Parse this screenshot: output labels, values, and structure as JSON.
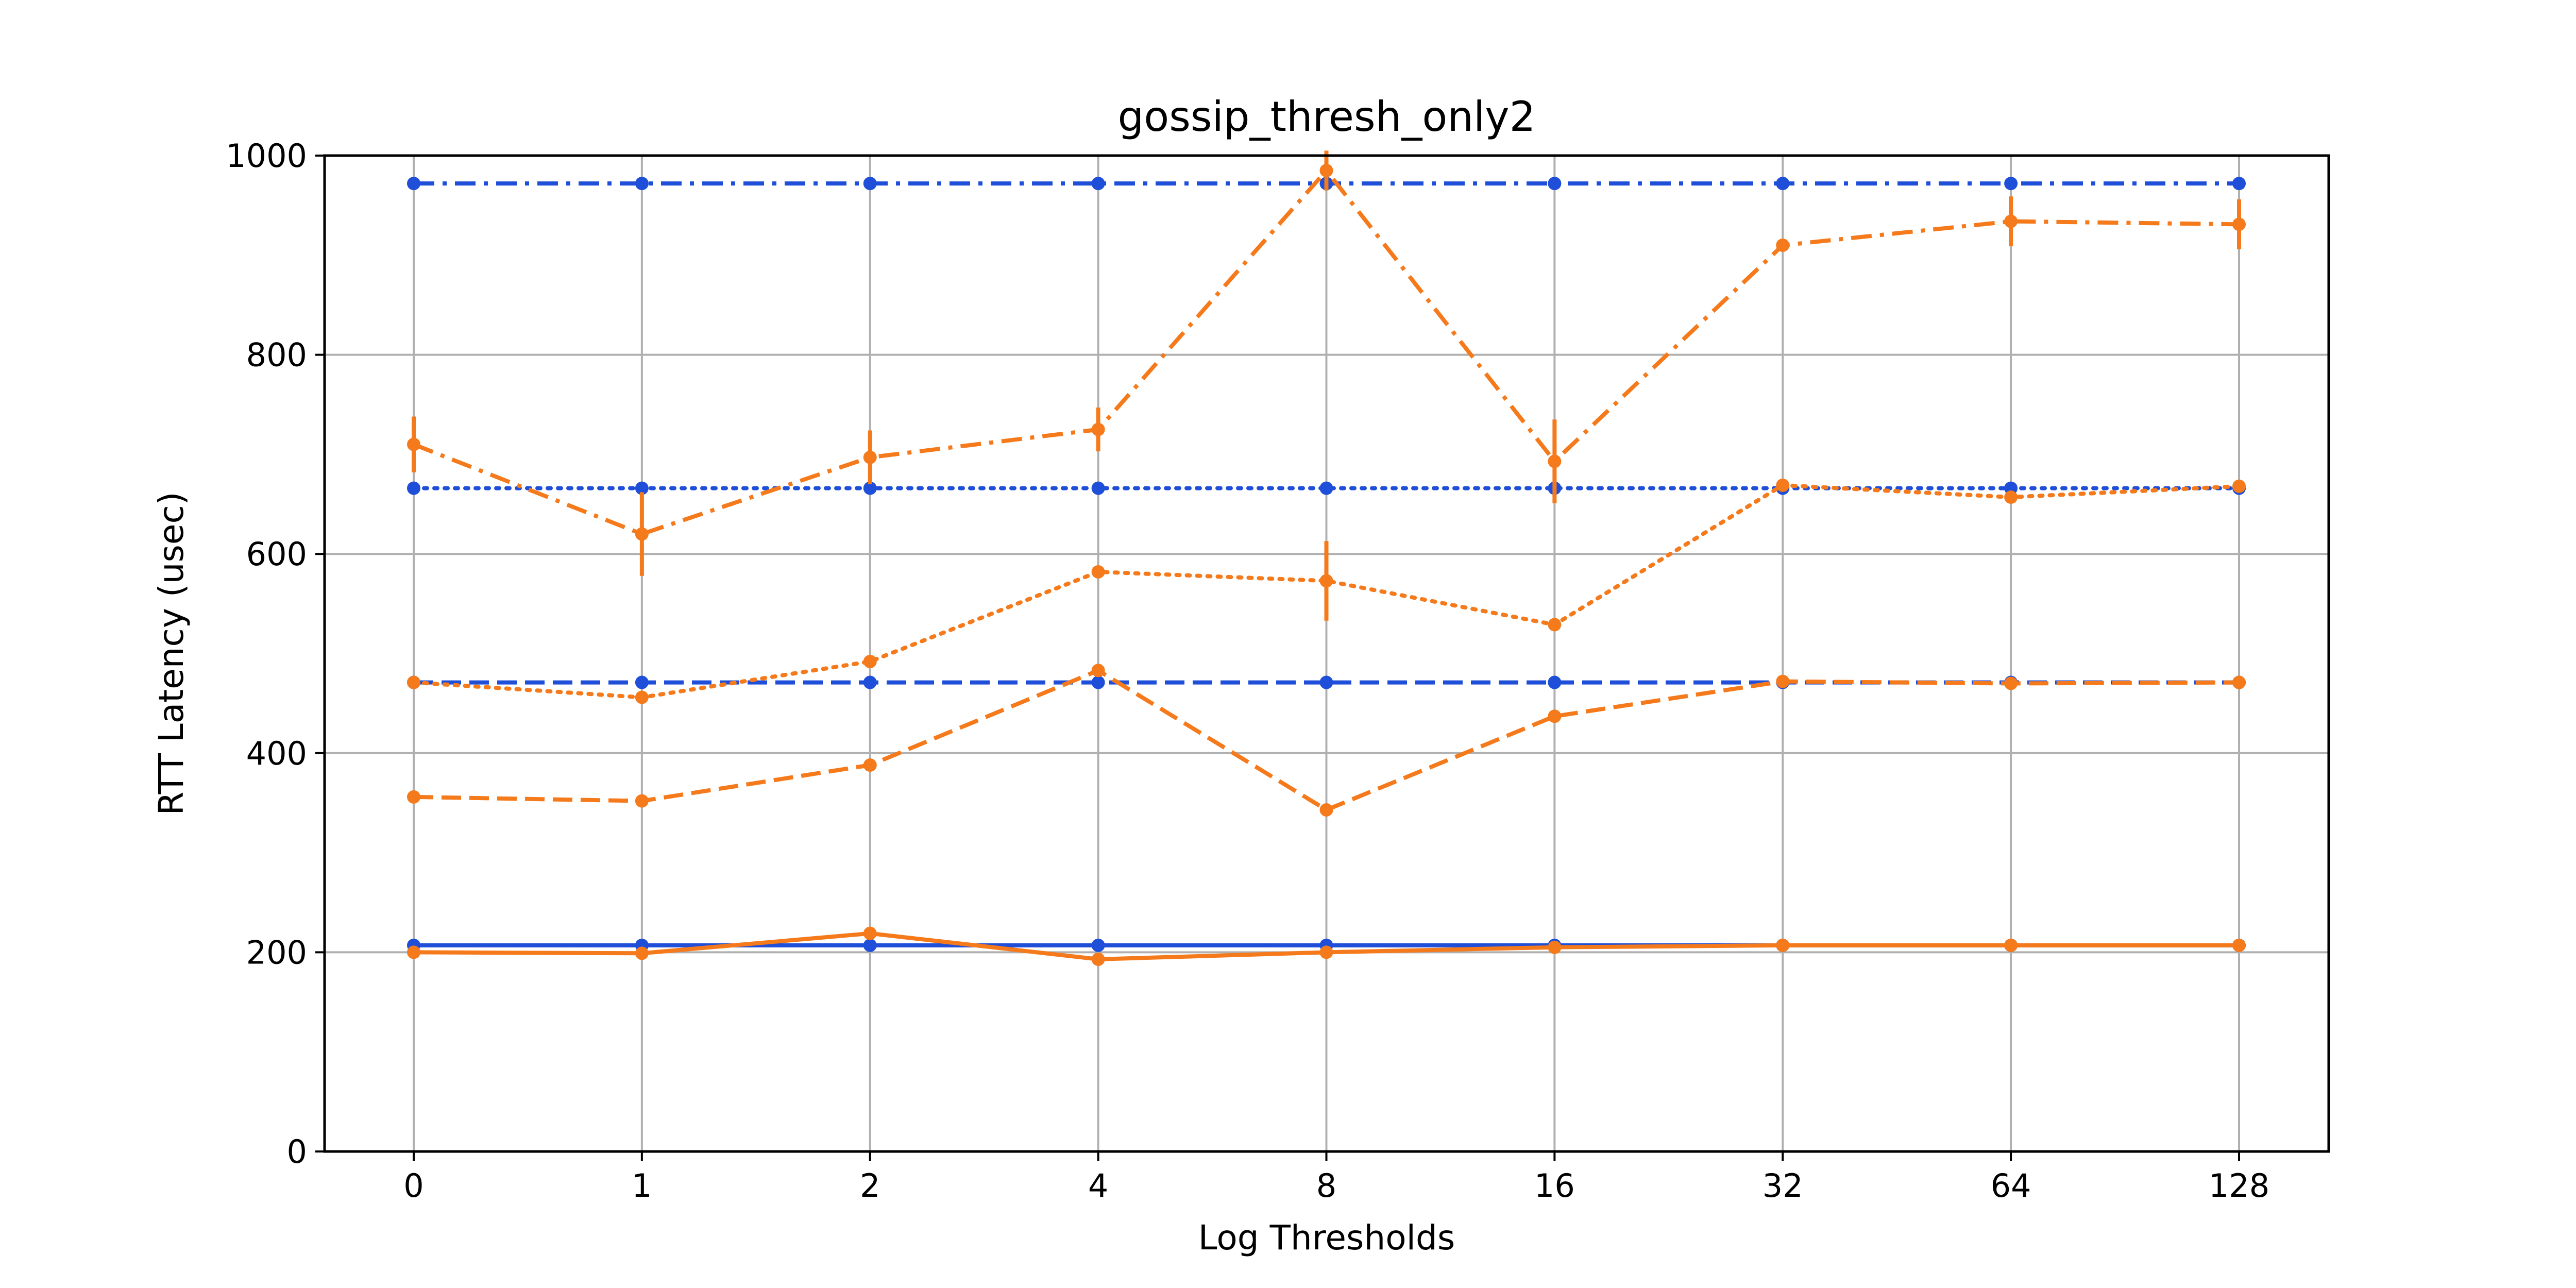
{
  "chart_data": {
    "type": "line",
    "title": "gossip_thresh_only2",
    "xlabel": "Log Thresholds",
    "ylabel": "RTT Latency (usec)",
    "categories": [
      "0",
      "1",
      "2",
      "4",
      "8",
      "16",
      "32",
      "64",
      "128"
    ],
    "ylim": [
      0,
      1000
    ],
    "yticks": [
      0,
      200,
      400,
      600,
      800,
      1000
    ],
    "grid": true,
    "series": [
      {
        "color": "#1f4fd8",
        "linestyle": "solid",
        "values": [
          207,
          207,
          207,
          207,
          207,
          207,
          207,
          207,
          207
        ],
        "errors": [
          0,
          0,
          0,
          0,
          0,
          0,
          0,
          0,
          0
        ]
      },
      {
        "color": "#f57a1c",
        "linestyle": "solid",
        "values": [
          200,
          199,
          219,
          193,
          200,
          205,
          207,
          207,
          207
        ],
        "errors": [
          0,
          0,
          0,
          0,
          0,
          0,
          0,
          0,
          0
        ]
      },
      {
        "color": "#1f4fd8",
        "linestyle": "dashed",
        "values": [
          471,
          471,
          471,
          471,
          471,
          471,
          471,
          471,
          471
        ],
        "errors": [
          0,
          0,
          0,
          0,
          0,
          0,
          0,
          0,
          0
        ]
      },
      {
        "color": "#f57a1c",
        "linestyle": "dashed",
        "values": [
          356,
          352,
          388,
          483,
          343,
          437,
          472,
          470,
          471
        ],
        "errors": [
          0,
          0,
          0,
          0,
          0,
          0,
          0,
          0,
          0
        ]
      },
      {
        "color": "#1f4fd8",
        "linestyle": "dotted",
        "values": [
          666,
          666,
          666,
          666,
          666,
          666,
          666,
          666,
          666
        ],
        "errors": [
          0,
          0,
          0,
          0,
          0,
          0,
          0,
          0,
          0
        ]
      },
      {
        "color": "#f57a1c",
        "linestyle": "dotted",
        "values": [
          471,
          456,
          492,
          582,
          573,
          529,
          669,
          657,
          668
        ],
        "errors": [
          0,
          0,
          0,
          0,
          40,
          0,
          0,
          0,
          0
        ]
      },
      {
        "color": "#1f4fd8",
        "linestyle": "dashdot",
        "values": [
          972,
          972,
          972,
          972,
          972,
          972,
          972,
          972,
          972
        ],
        "errors": [
          0,
          0,
          0,
          0,
          0,
          0,
          0,
          0,
          0
        ]
      },
      {
        "color": "#f57a1c",
        "linestyle": "dashdot",
        "values": [
          710,
          620,
          697,
          725,
          985,
          693,
          910,
          934,
          931
        ],
        "errors": [
          28,
          42,
          27,
          22,
          20,
          42,
          0,
          25,
          25
        ]
      }
    ]
  }
}
